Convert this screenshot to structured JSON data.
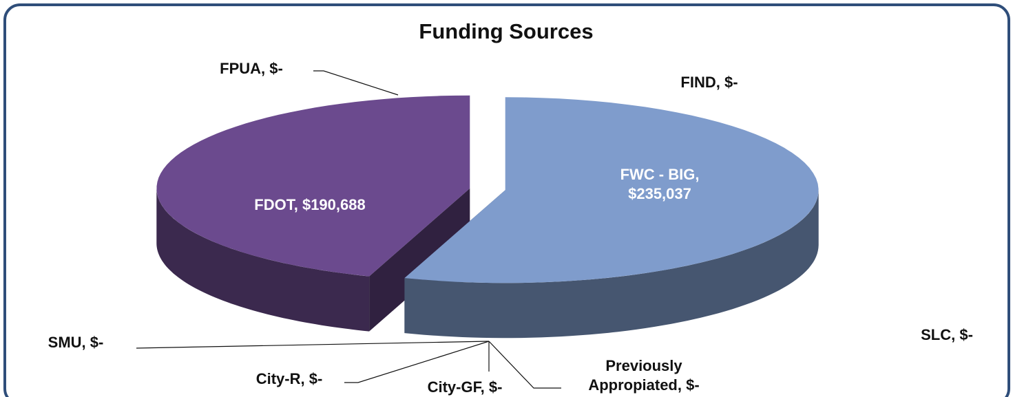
{
  "chart_data": {
    "type": "pie3d",
    "title": "Funding Sources",
    "categories": [
      "FWC - BIG,",
      "FDOT,",
      "FPUA,",
      "FIND,",
      "SLC,",
      "SMU,",
      "City-R,",
      "City-GF,",
      "Previously Appropiated,"
    ],
    "values": [
      235037,
      190688,
      0,
      0,
      0,
      0,
      0,
      0,
      0
    ],
    "value_labels": [
      "$235,037",
      "$190,688",
      "$-",
      "$-",
      "$-",
      "$-",
      "$-",
      "$-",
      "$-"
    ],
    "colors": [
      "#7f9ccc",
      "#6b4a8e",
      "#7a3a10",
      "#9bbb59",
      "#4bacc6",
      "#f79646",
      "#c0504d",
      "#8064a2",
      "#4f81bd"
    ]
  }
}
